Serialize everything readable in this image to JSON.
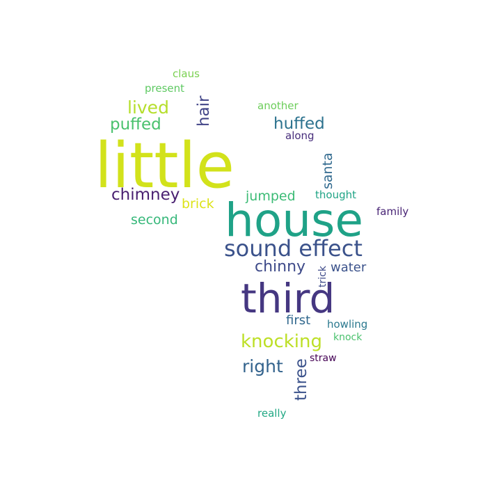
{
  "words": {
    "w0": {
      "text": "little",
      "color": "#d2e21b"
    },
    "w1": {
      "text": "house",
      "color": "#1fa287"
    },
    "w2": {
      "text": "third",
      "color": "#453781"
    },
    "w3": {
      "text": "sound effect",
      "color": "#3b528b"
    },
    "w4": {
      "text": "knocking",
      "color": "#bddf26"
    },
    "w5": {
      "text": "chimney",
      "color": "#481f70"
    },
    "w6": {
      "text": "huffed",
      "color": "#2c728e"
    },
    "w7": {
      "text": "lived",
      "color": "#b5de2b"
    },
    "w8": {
      "text": "puffed",
      "color": "#4ac16d"
    },
    "w9": {
      "text": "hair",
      "color": "#414487"
    },
    "w10": {
      "text": "chinny",
      "color": "#3e4a89"
    },
    "w11": {
      "text": "right",
      "color": "#33638d"
    },
    "w12": {
      "text": "three",
      "color": "#3b528b"
    },
    "w13": {
      "text": "santa",
      "color": "#30698e"
    },
    "w14": {
      "text": "jumped",
      "color": "#3bbb75"
    },
    "w15": {
      "text": "brick",
      "color": "#dde318"
    },
    "w16": {
      "text": "second",
      "color": "#35b779"
    },
    "w17": {
      "text": "first",
      "color": "#31688e"
    },
    "w18": {
      "text": "water",
      "color": "#3b528b"
    },
    "w19": {
      "text": "thought",
      "color": "#20a486"
    },
    "w20": {
      "text": "family",
      "color": "#482475"
    },
    "w21": {
      "text": "howling",
      "color": "#2a788e"
    },
    "w22": {
      "text": "knock",
      "color": "#4ac16d"
    },
    "w23": {
      "text": "straw",
      "color": "#440154"
    },
    "w24": {
      "text": "trick",
      "color": "#3e4a89"
    },
    "w25": {
      "text": "another",
      "color": "#6ccd5a"
    },
    "w26": {
      "text": "along",
      "color": "#472d7b"
    },
    "w27": {
      "text": "claus",
      "color": "#7ad151"
    },
    "w28": {
      "text": "present",
      "color": "#5ec962"
    },
    "w29": {
      "text": "really",
      "color": "#22a884"
    }
  }
}
